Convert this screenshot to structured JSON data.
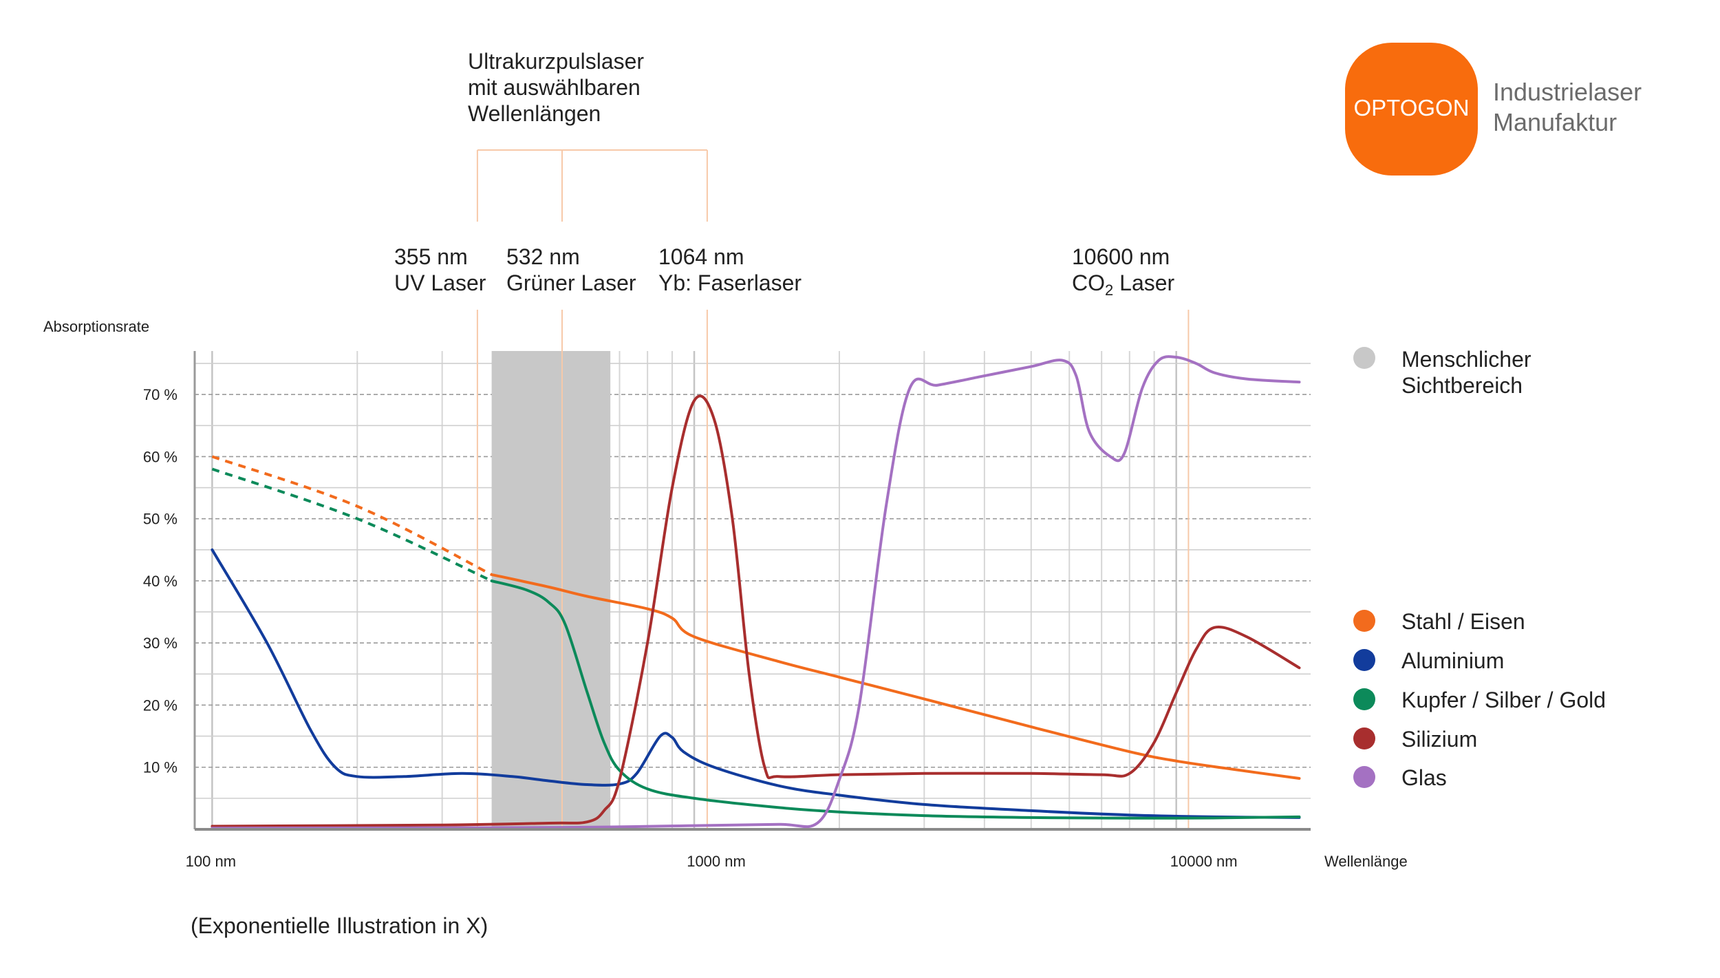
{
  "brand": {
    "logo_text": "OPTOGON",
    "tagline_line1": "Industrielaser",
    "tagline_line2": "Manufaktur",
    "color": "#F86C0D"
  },
  "ukp_bracket": {
    "line1": "Ultrakurzpulslaser",
    "line2": "mit auswählbaren",
    "line3": "Wellenlängen"
  },
  "lasers": [
    {
      "wavelength_nm": 355,
      "label_top": "355 nm",
      "label_bottom": "UV Laser"
    },
    {
      "wavelength_nm": 532,
      "label_top": "532 nm",
      "label_bottom": "Grüner Laser"
    },
    {
      "wavelength_nm": 1064,
      "label_top": "1064 nm",
      "label_bottom": "Yb: Faserlaser"
    },
    {
      "wavelength_nm": 10600,
      "label_top": "10600 nm",
      "label_bottom_main": "CO",
      "label_bottom_sub": "2",
      "label_bottom_rest": " Laser"
    }
  ],
  "footnote": "(Exponentielle Illustration in X)",
  "visible_band_legend": {
    "line1": "Menschlicher",
    "line2": "Sichtbereich",
    "color": "#C8C8C8"
  },
  "chart_data": {
    "type": "line",
    "xscale": "log",
    "xlim": [
      92,
      19000
    ],
    "ylim": [
      0,
      77
    ],
    "ylabel": "Absorptionsrate",
    "xlabel": "Wellenlänge",
    "x_ticks": [
      {
        "value": 100,
        "label": "100 nm"
      },
      {
        "value": 1000,
        "label": "1000 nm"
      },
      {
        "value": 10000,
        "label": "10000 nm"
      }
    ],
    "y_ticks": [
      {
        "value": 10,
        "label": "10 %"
      },
      {
        "value": 20,
        "label": "20 %"
      },
      {
        "value": 30,
        "label": "30 %"
      },
      {
        "value": 40,
        "label": "40 %"
      },
      {
        "value": 50,
        "label": "50 %"
      },
      {
        "value": 60,
        "label": "60 %"
      },
      {
        "value": 70,
        "label": "70 %"
      }
    ],
    "visible_band": [
      380,
      670
    ],
    "grid": true,
    "legend_position": "right",
    "series": [
      {
        "name": "Stahl / Eisen",
        "color": "#F26B1D",
        "dashed_points": [
          [
            100,
            60
          ],
          [
            200,
            52
          ],
          [
            380,
            41
          ]
        ],
        "points": [
          [
            380,
            41
          ],
          [
            500,
            39
          ],
          [
            600,
            37.5
          ],
          [
            800,
            35.5
          ],
          [
            900,
            34
          ],
          [
            1000,
            31
          ],
          [
            1500,
            27
          ],
          [
            2000,
            24.5
          ],
          [
            3000,
            21
          ],
          [
            5000,
            16.5
          ],
          [
            8000,
            12.5
          ],
          [
            10000,
            11
          ],
          [
            13000,
            9.7
          ],
          [
            18000,
            8.2
          ]
        ]
      },
      {
        "name": "Aluminium",
        "color": "#123C9C",
        "points": [
          [
            100,
            45
          ],
          [
            130,
            30
          ],
          [
            160,
            16
          ],
          [
            180,
            10
          ],
          [
            200,
            8.5
          ],
          [
            250,
            8.5
          ],
          [
            330,
            9
          ],
          [
            420,
            8.5
          ],
          [
            500,
            7.8
          ],
          [
            600,
            7.2
          ],
          [
            700,
            7.3
          ],
          [
            760,
            9
          ],
          [
            850,
            15
          ],
          [
            900,
            14.8
          ],
          [
            950,
            12.5
          ],
          [
            1100,
            10
          ],
          [
            1500,
            7
          ],
          [
            2000,
            5.5
          ],
          [
            3000,
            4
          ],
          [
            5000,
            3
          ],
          [
            8000,
            2.3
          ],
          [
            12000,
            2
          ],
          [
            18000,
            1.9
          ]
        ]
      },
      {
        "name": "Kupfer / Silber / Gold",
        "color": "#0C8A5A",
        "dashed_points": [
          [
            100,
            58
          ],
          [
            200,
            50
          ],
          [
            380,
            40
          ]
        ],
        "points": [
          [
            380,
            40
          ],
          [
            450,
            38.5
          ],
          [
            500,
            36.5
          ],
          [
            540,
            33
          ],
          [
            600,
            22
          ],
          [
            650,
            14
          ],
          [
            700,
            9.5
          ],
          [
            800,
            6.5
          ],
          [
            1000,
            5
          ],
          [
            1500,
            3.5
          ],
          [
            2000,
            2.8
          ],
          [
            3000,
            2.2
          ],
          [
            5000,
            1.9
          ],
          [
            10000,
            1.8
          ],
          [
            18000,
            2
          ]
        ]
      },
      {
        "name": "Silizium",
        "color": "#A82E2E",
        "points": [
          [
            100,
            0.5
          ],
          [
            300,
            0.7
          ],
          [
            500,
            1
          ],
          [
            600,
            1.2
          ],
          [
            650,
            3
          ],
          [
            700,
            8
          ],
          [
            800,
            30
          ],
          [
            900,
            55
          ],
          [
            1000,
            69
          ],
          [
            1100,
            66
          ],
          [
            1200,
            50
          ],
          [
            1300,
            25
          ],
          [
            1400,
            10
          ],
          [
            1500,
            8.5
          ],
          [
            2000,
            8.8
          ],
          [
            3000,
            9
          ],
          [
            5000,
            9
          ],
          [
            7000,
            8.8
          ],
          [
            8000,
            9
          ],
          [
            9000,
            14
          ],
          [
            10000,
            22
          ],
          [
            11000,
            29
          ],
          [
            12000,
            32.5
          ],
          [
            14000,
            31
          ],
          [
            18000,
            26
          ]
        ]
      },
      {
        "name": "Glas",
        "color": "#A471C2",
        "points": [
          [
            100,
            0.2
          ],
          [
            500,
            0.3
          ],
          [
            1000,
            0.6
          ],
          [
            1500,
            0.8
          ],
          [
            1800,
            1
          ],
          [
            2000,
            8
          ],
          [
            2200,
            20
          ],
          [
            2500,
            52
          ],
          [
            2800,
            71
          ],
          [
            3200,
            71.5
          ],
          [
            4000,
            73
          ],
          [
            5000,
            74.5
          ],
          [
            5800,
            75.5
          ],
          [
            6200,
            73
          ],
          [
            6600,
            64
          ],
          [
            7300,
            60
          ],
          [
            7800,
            60.5
          ],
          [
            8500,
            71
          ],
          [
            9200,
            75.5
          ],
          [
            10000,
            76
          ],
          [
            11000,
            75
          ],
          [
            12000,
            73.5
          ],
          [
            14000,
            72.5
          ],
          [
            18000,
            72
          ]
        ]
      }
    ]
  }
}
